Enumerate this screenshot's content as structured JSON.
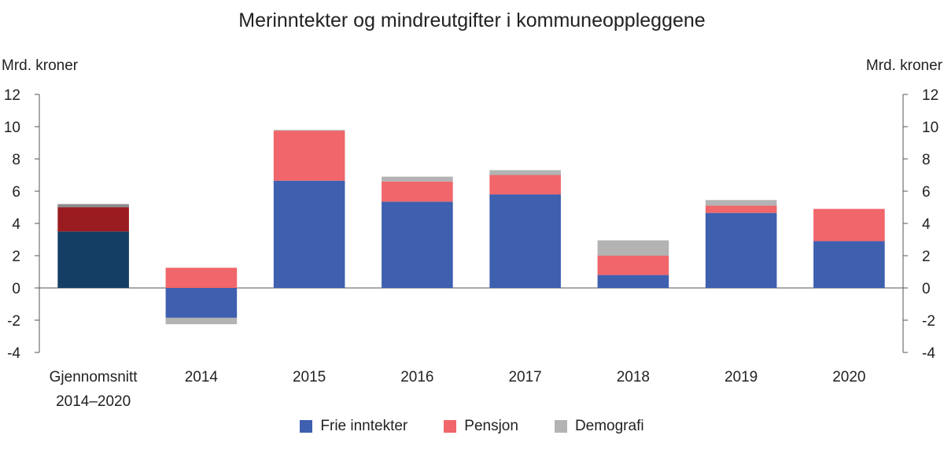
{
  "chart_data": {
    "type": "bar",
    "stacked": true,
    "title": "Merinntekter og mindreutgifter i kommuneoppleggene",
    "ylabel_left": "Mrd. kroner",
    "ylabel_right": "Mrd. kroner",
    "ylim": [
      -4,
      12
    ],
    "yticks": [
      12,
      10,
      8,
      6,
      4,
      2,
      0,
      -2,
      -4
    ],
    "categories": [
      [
        "Gjennomsnitt",
        "2014–2020"
      ],
      [
        "2014"
      ],
      [
        "2015"
      ],
      [
        "2016"
      ],
      [
        "2017"
      ],
      [
        "2018"
      ],
      [
        "2019"
      ],
      [
        "2020"
      ]
    ],
    "series": [
      {
        "name": "Frie inntekter",
        "color": "#3f5faf",
        "values": [
          3.5,
          -1.85,
          6.65,
          5.35,
          5.8,
          0.8,
          4.65,
          2.9
        ]
      },
      {
        "name": "Pensjon",
        "color": "#f0666a",
        "values": [
          1.5,
          1.25,
          3.1,
          1.25,
          1.2,
          1.2,
          0.45,
          2.0
        ]
      },
      {
        "name": "Demografi",
        "color": "#b3b3b3",
        "values": [
          0.2,
          -0.4,
          0.05,
          0.3,
          0.3,
          0.95,
          0.35,
          0.0
        ]
      }
    ],
    "highlight_first_category_colors": [
      "#143e64",
      "#9a1c20",
      "#8c8c8c"
    ],
    "grid": false,
    "legend_position": "bottom"
  }
}
